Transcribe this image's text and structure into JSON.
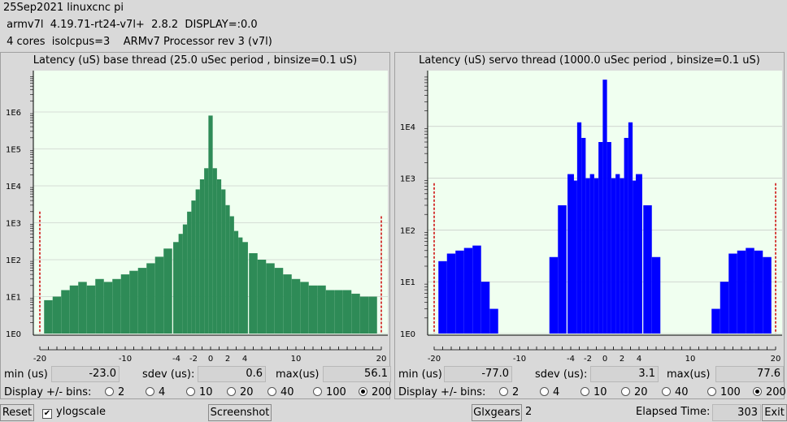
{
  "header": {
    "line1": "25Sep2021 linuxcnc pi",
    "line2": " armv7l  4.19.71-rt24-v7l+  2.8.2  DISPLAY=:0.0",
    "line3": " 4 cores  isolcpus=3    ARMv7 Processor rev 3 (v7l)"
  },
  "colors": {
    "base_bars": "#2e8b57",
    "servo_bars": "#0000ff",
    "plot_bg": "#f0fff0",
    "limit_line": "#cc0000"
  },
  "panels": [
    {
      "title": "Latency (uS) base thread (25.0 uSec period , binsize=0.1 uS)",
      "min_label": "min (us)",
      "min_value": "-23.0",
      "sdev_label": "sdev (us):",
      "sdev_value": "0.6",
      "max_label": "max(us)",
      "max_value": "56.1",
      "bins_label": "Display +/- bins:",
      "bins": [
        "2",
        "4",
        "10",
        "20",
        "40",
        "100",
        "200"
      ],
      "bins_selected": "200"
    },
    {
      "title": "Latency (uS) servo thread (1000.0 uSec period , binsize=0.1 uS)",
      "min_label": "min (us)",
      "min_value": "-77.0",
      "sdev_label": "sdev (us):",
      "sdev_value": "3.1",
      "max_label": "max(us)",
      "max_value": "77.6",
      "bins_label": "Display +/- bins:",
      "bins": [
        "2",
        "4",
        "10",
        "20",
        "40",
        "100",
        "200"
      ],
      "bins_selected": "200"
    }
  ],
  "bottom": {
    "reset": "Reset",
    "ylogscale": "ylogscale",
    "ylogscale_checked": true,
    "screenshot": "Screenshot",
    "glxgears": "Glxgears",
    "glxgears_count": "2",
    "elapsed_label": "Elapsed Time:",
    "elapsed_value": "303",
    "exit": "Exit"
  },
  "chart_data": [
    {
      "type": "bar",
      "title": "Latency (uS) base thread (25.0 uSec period , binsize=0.1 uS)",
      "ylog": true,
      "ytick_labels": [
        "1E0",
        "1E1",
        "1E2",
        "1E3",
        "1E4",
        "1E5",
        "1E6"
      ],
      "xtick_labels": [
        "-20",
        "-10",
        "-4",
        "-2",
        "0",
        "2",
        "4",
        "10",
        "20"
      ],
      "xlim": [
        -20,
        20
      ],
      "x": [
        -20,
        -19,
        -18,
        -17,
        -16,
        -15,
        -14,
        -13,
        -12,
        -11,
        -10,
        -9,
        -8,
        -7,
        -6,
        -5,
        -4,
        -3.5,
        -3,
        -2.5,
        -2,
        -1.5,
        -1,
        -0.5,
        0,
        0.5,
        1,
        1.5,
        2,
        2.5,
        3,
        3.5,
        4,
        5,
        6,
        7,
        8,
        9,
        10,
        11,
        12,
        13,
        14,
        15,
        16,
        17,
        18,
        19,
        20
      ],
      "values": [
        2000,
        8,
        10,
        15,
        20,
        25,
        20,
        30,
        25,
        30,
        40,
        50,
        60,
        80,
        120,
        200,
        300,
        500,
        900,
        2000,
        4000,
        8000,
        15000,
        30000,
        800000,
        30000,
        15000,
        8000,
        3000,
        1500,
        600,
        400,
        300,
        150,
        100,
        80,
        60,
        40,
        30,
        25,
        20,
        20,
        15,
        15,
        15,
        12,
        10,
        10,
        1500
      ]
    },
    {
      "type": "bar",
      "title": "Latency (uS) servo thread (1000.0 uSec period , binsize=0.1 uS)",
      "ylog": true,
      "ytick_labels": [
        "1E0",
        "1E1",
        "1E2",
        "1E3",
        "1E4"
      ],
      "xtick_labels": [
        "-20",
        "-10",
        "-4",
        "-2",
        "0",
        "2",
        "4",
        "10",
        "20"
      ],
      "xlim": [
        -20,
        20
      ],
      "x": [
        -20,
        -19,
        -18,
        -17,
        -16,
        -15,
        -14,
        -13,
        -12,
        -11,
        -10,
        -9,
        -8,
        -7,
        -6,
        -5,
        -4,
        -3.5,
        -3,
        -2.5,
        -2,
        -1.5,
        -1,
        -0.5,
        0,
        0.5,
        1,
        1.5,
        2,
        2.5,
        3,
        3.5,
        4,
        5,
        6,
        7,
        8,
        9,
        10,
        11,
        12,
        13,
        14,
        15,
        16,
        17,
        18,
        19,
        20
      ],
      "values": [
        800,
        25,
        35,
        40,
        45,
        50,
        10,
        3,
        1,
        1,
        1,
        1,
        1,
        1,
        30,
        300,
        1200,
        900,
        12000,
        6000,
        1000,
        1200,
        1000,
        5000,
        80000,
        5000,
        1000,
        1200,
        1000,
        6000,
        12000,
        900,
        1200,
        300,
        30,
        1,
        1,
        1,
        1,
        1,
        1,
        3,
        10,
        35,
        40,
        45,
        40,
        30,
        800
      ]
    }
  ]
}
